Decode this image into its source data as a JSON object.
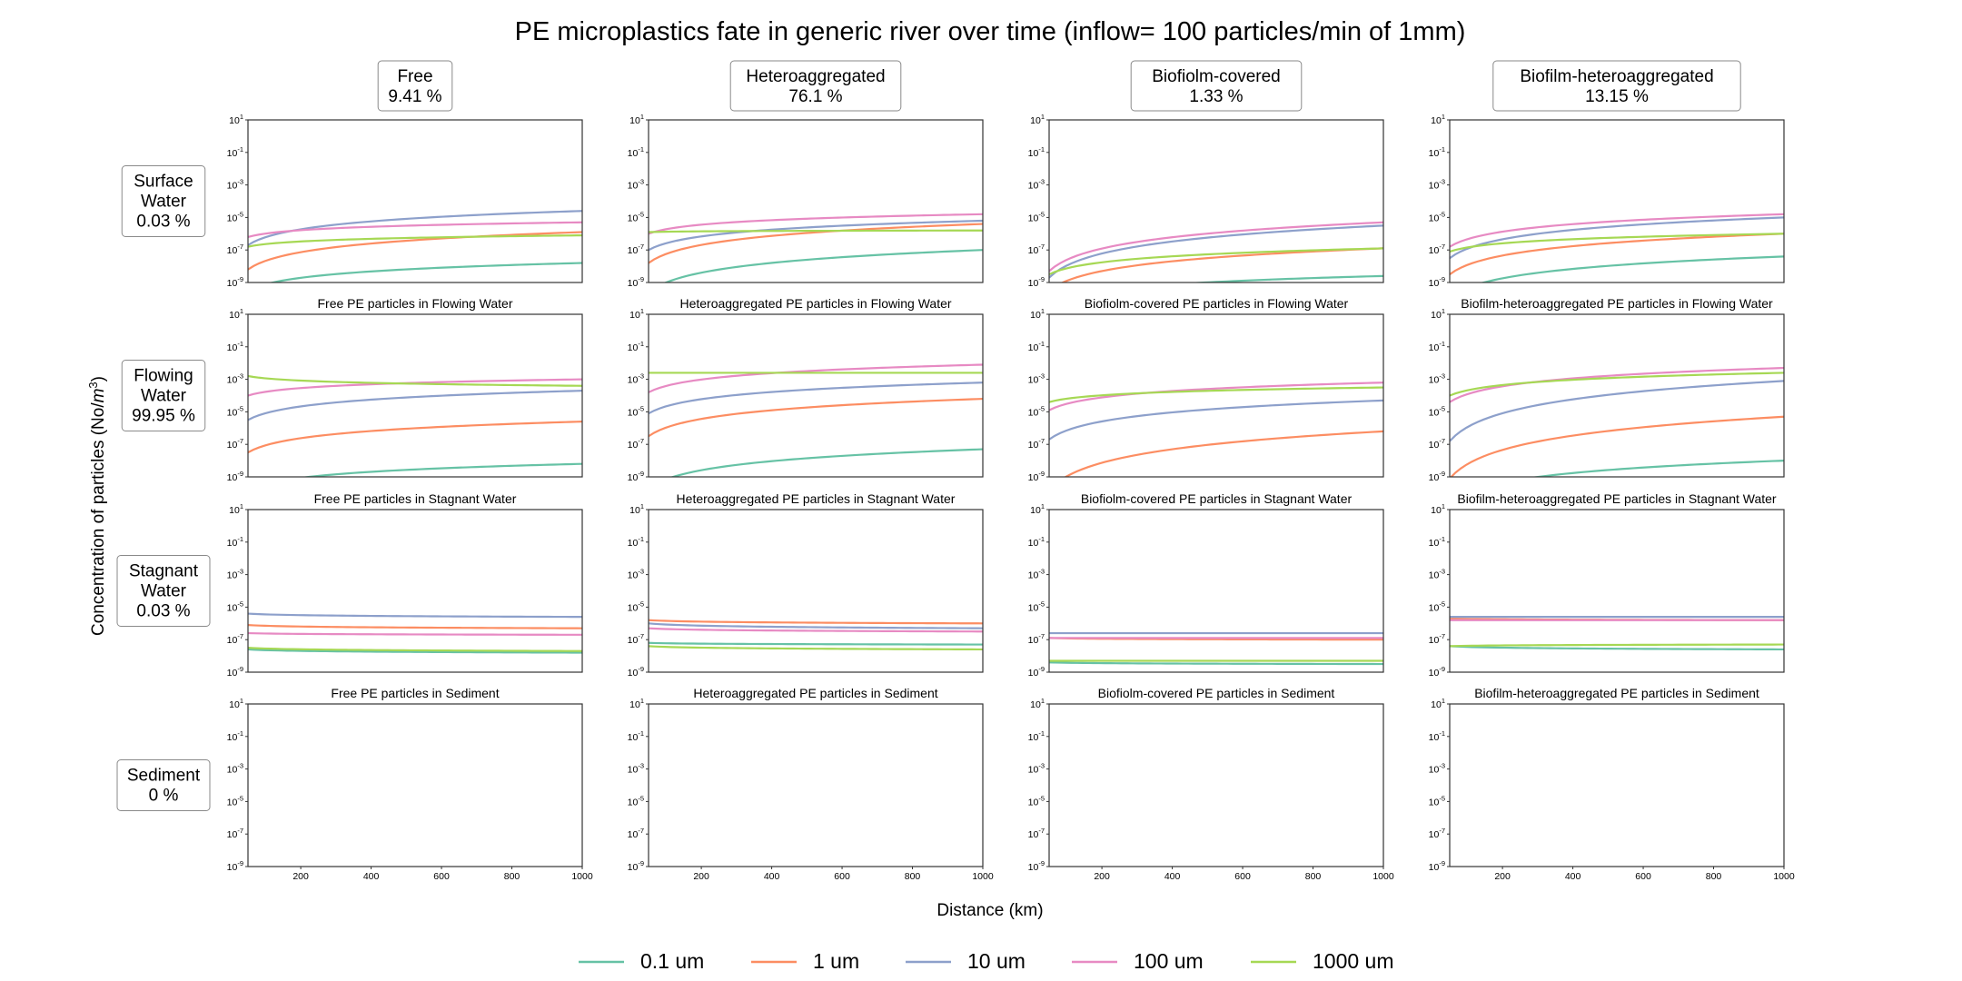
{
  "chart_data": {
    "type": "line",
    "title": "PE microplastics fate in generic river over time (inflow= 100 particles/min of 1mm)",
    "xlabel": "Distance (km)",
    "ylabel_main": "Concentration of particles (No/",
    "ylabel_unit": "m",
    "ylabel_exp": "3",
    "ylabel_end": ")",
    "yscale": "log",
    "xlim": [
      50,
      1000
    ],
    "ylim": [
      1e-09,
      10
    ],
    "x_ticks": [
      200,
      400,
      600,
      800,
      1000
    ],
    "y_ticks": [
      {
        "base": "10",
        "exp": "1"
      },
      {
        "base": "10",
        "exp": "-1"
      },
      {
        "base": "10",
        "exp": "-3"
      },
      {
        "base": "10",
        "exp": "-5"
      },
      {
        "base": "10",
        "exp": "-7"
      },
      {
        "base": "10",
        "exp": "-9"
      }
    ],
    "grid": false,
    "legend_position": "bottom-center",
    "legend": [
      {
        "label": "0.1 um",
        "color": "#66c2a5"
      },
      {
        "label": "1 um",
        "color": "#fc8d62"
      },
      {
        "label": "10 um",
        "color": "#8da0cb"
      },
      {
        "label": "100 um",
        "color": "#e78ac3"
      },
      {
        "label": "1000 um",
        "color": "#a6d854"
      }
    ],
    "columns": [
      {
        "name": "Free",
        "pct": "9.41 %"
      },
      {
        "name": "Heteroaggregated",
        "pct": "76.1 %"
      },
      {
        "name": "Biofiolm-covered",
        "pct": "1.33 %"
      },
      {
        "name": "Biofilm-heteroaggregated",
        "pct": "13.15 %"
      }
    ],
    "rows": [
      {
        "line1": "Surface",
        "line2": "Water",
        "pct": "0.03 %"
      },
      {
        "line1": "Flowing",
        "line2": "Water",
        "pct": "99.95 %"
      },
      {
        "line1": "Stagnant",
        "line2": "Water",
        "pct": "0.03 %"
      },
      {
        "line1": "Sediment",
        "line2": "",
        "pct": "0 %"
      }
    ],
    "panel_titles": [
      [
        "",
        "",
        "",
        ""
      ],
      [
        "Free PE particles in Flowing Water",
        "Heteroaggregated PE particles in Flowing Water",
        "Biofiolm-covered PE particles in Flowing Water",
        "Biofilm-heteroaggregated PE particles in Flowing Water"
      ],
      [
        "Free PE particles in Stagnant Water",
        "Heteroaggregated PE particles in Stagnant Water",
        "Biofiolm-covered PE particles in Stagnant Water",
        "Biofilm-heteroaggregated PE particles in Stagnant Water"
      ],
      [
        "Free PE particles in Sediment",
        "Heteroaggregated PE particles in Sediment",
        "Biofiolm-covered PE particles in Sediment",
        "Biofilm-heteroaggregated PE particles in Sediment"
      ]
    ],
    "series_log10": [
      [
        [
          [
            -9.5,
            -7.8
          ],
          [
            -8.2,
            -5.9
          ],
          [
            -6.7,
            -4.6
          ],
          [
            -6.2,
            -5.3
          ],
          [
            -6.8,
            -6.1
          ]
        ],
        [
          [
            -9.6,
            -7.0
          ],
          [
            -7.8,
            -5.4
          ],
          [
            -7.0,
            -5.2
          ],
          [
            -6.0,
            -4.8
          ],
          [
            -5.9,
            -5.8
          ]
        ],
        [
          [
            -10.3,
            -8.6
          ],
          [
            -9.5,
            -6.9
          ],
          [
            -8.7,
            -5.5
          ],
          [
            -8.3,
            -5.3
          ],
          [
            -8.5,
            -6.9
          ]
        ],
        [
          [
            -9.9,
            -7.4
          ],
          [
            -8.5,
            -6.0
          ],
          [
            -7.5,
            -5.0
          ],
          [
            -6.8,
            -4.8
          ],
          [
            -7.1,
            -6.0
          ]
        ]
      ],
      [
        [
          [
            -9.8,
            -8.2
          ],
          [
            -7.5,
            -5.6
          ],
          [
            -5.5,
            -3.7
          ],
          [
            -4.0,
            -3.0
          ],
          [
            -2.8,
            -3.4
          ]
        ],
        [
          [
            -9.7,
            -7.3
          ],
          [
            -6.5,
            -4.2
          ],
          [
            -5.1,
            -3.2
          ],
          [
            -3.8,
            -2.1
          ],
          [
            -2.6,
            -2.6
          ]
        ],
        [
          [
            -10.3,
            -10.3
          ],
          [
            -9.8,
            -6.2
          ],
          [
            -6.7,
            -4.3
          ],
          [
            -4.9,
            -3.2
          ],
          [
            -4.4,
            -3.5
          ]
        ],
        [
          [
            -10.5,
            -8.0
          ],
          [
            -9.1,
            -5.3
          ],
          [
            -6.8,
            -3.1
          ],
          [
            -4.4,
            -2.3
          ],
          [
            -4.0,
            -2.6
          ]
        ]
      ],
      [
        [
          [
            -7.6,
            -7.8
          ],
          [
            -6.1,
            -6.3
          ],
          [
            -5.4,
            -5.6
          ],
          [
            -6.6,
            -6.7
          ],
          [
            -7.5,
            -7.7
          ]
        ],
        [
          [
            -7.2,
            -7.3
          ],
          [
            -5.8,
            -6.0
          ],
          [
            -6.0,
            -6.3
          ],
          [
            -6.3,
            -6.5
          ],
          [
            -7.4,
            -7.6
          ]
        ],
        [
          [
            -8.4,
            -8.5
          ],
          [
            -6.9,
            -7.0
          ],
          [
            -6.6,
            -6.6
          ],
          [
            -6.9,
            -6.9
          ],
          [
            -8.3,
            -8.3
          ]
        ],
        [
          [
            -7.4,
            -7.6
          ],
          [
            -5.7,
            -5.8
          ],
          [
            -5.6,
            -5.6
          ],
          [
            -5.8,
            -5.8
          ],
          [
            -7.4,
            -7.3
          ]
        ]
      ],
      [
        [
          [
            -12,
            -12
          ],
          [
            -12,
            -12
          ],
          [
            -12,
            -12
          ],
          [
            -12,
            -12
          ],
          [
            -12,
            -12
          ]
        ],
        [
          [
            -12,
            -12
          ],
          [
            -12,
            -12
          ],
          [
            -12,
            -12
          ],
          [
            -12,
            -12
          ],
          [
            -12,
            -12
          ]
        ],
        [
          [
            -12,
            -12
          ],
          [
            -12,
            -12
          ],
          [
            -12,
            -12
          ],
          [
            -12,
            -12
          ],
          [
            -12,
            -12
          ]
        ],
        [
          [
            -12,
            -12
          ],
          [
            -12,
            -12
          ],
          [
            -12,
            -12
          ],
          [
            -12,
            -12
          ],
          [
            -12,
            -12
          ]
        ]
      ]
    ]
  }
}
